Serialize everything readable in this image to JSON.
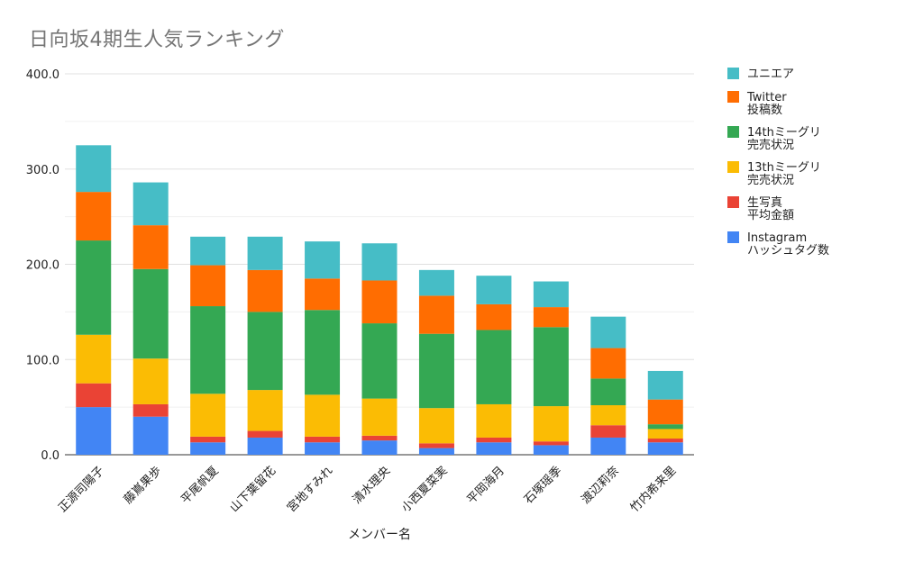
{
  "chart_data": {
    "type": "bar",
    "stacked": true,
    "title": "日向坂4期生人気ランキング",
    "xlabel": "メンバー名",
    "ylabel": "",
    "ylim": [
      0,
      400
    ],
    "yticks": [
      "0.0",
      "100.0",
      "200.0",
      "300.0",
      "400.0"
    ],
    "grid": true,
    "legend_position": "right",
    "categories": [
      "正源司陽子",
      "藤嶌果歩",
      "平尾帆夏",
      "山下葉留花",
      "宮地すみれ",
      "清水理央",
      "小西夏菜実",
      "平岡海月",
      "石塚瑶季",
      "渡辺莉奈",
      "竹内希来里"
    ],
    "series": [
      {
        "name": [
          "Instagram",
          "ハッシュタグ数"
        ],
        "color": "#4285f4",
        "values": [
          50,
          40,
          13,
          18,
          13,
          15,
          7,
          13,
          10,
          18,
          13
        ]
      },
      {
        "name": [
          "生写真",
          "平均金額"
        ],
        "color": "#ea4335",
        "values": [
          25,
          13,
          6,
          7,
          6,
          5,
          5,
          5,
          4,
          13,
          4
        ]
      },
      {
        "name": [
          "13thミーグリ",
          "完売状況"
        ],
        "color": "#fbbc04",
        "values": [
          51,
          48,
          45,
          43,
          44,
          39,
          37,
          35,
          37,
          21,
          10
        ]
      },
      {
        "name": [
          "14thミーグリ",
          "完売状況"
        ],
        "color": "#34a853",
        "values": [
          99,
          94,
          92,
          82,
          89,
          79,
          78,
          78,
          83,
          28,
          5
        ]
      },
      {
        "name": [
          "Twitter",
          "投稿数"
        ],
        "color": "#ff6d01",
        "values": [
          51,
          46,
          43,
          44,
          33,
          45,
          40,
          27,
          21,
          32,
          26
        ]
      },
      {
        "name": [
          "ユニエア"
        ],
        "color": "#46bdc6",
        "values": [
          49,
          45,
          30,
          35,
          39,
          39,
          27,
          30,
          27,
          33,
          30
        ]
      }
    ]
  }
}
